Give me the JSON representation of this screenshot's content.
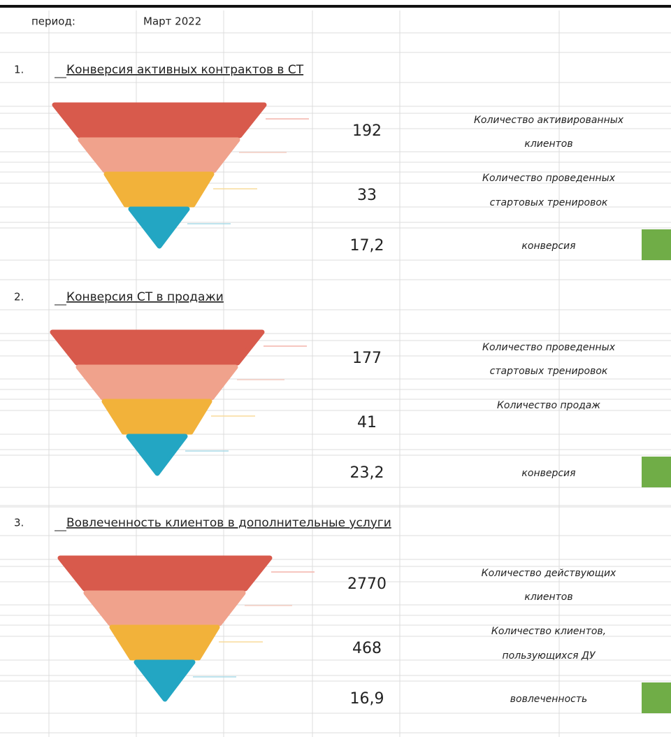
{
  "header": {
    "period_label": "период:",
    "period_value": "Март 2022"
  },
  "sections": [
    {
      "number": "1.",
      "title": "Конверсия активных контрактов в СТ",
      "rows": [
        {
          "value": "192",
          "label": [
            "Количество активированных",
            "клиентов"
          ]
        },
        {
          "value": "33",
          "label": [
            "Количество проведенных",
            "стартовых тренировок"
          ]
        },
        {
          "value": "17,2",
          "label": [
            "конверсия"
          ]
        }
      ]
    },
    {
      "number": "2.",
      "title": "Конверсия СТ в продажи",
      "rows": [
        {
          "value": "177",
          "label": [
            "Количество проведенных",
            "стартовых тренировок"
          ]
        },
        {
          "value": "41",
          "label": [
            "Количество продаж"
          ]
        },
        {
          "value": "23,2",
          "label": [
            "конверсия"
          ]
        }
      ]
    },
    {
      "number": "3.",
      "title": "Вовлеченность клиентов в дополнительные услуги",
      "rows": [
        {
          "value": "2770",
          "label": [
            "Количество действующих",
            "клиентов"
          ]
        },
        {
          "value": "468",
          "label": [
            "Количество клиентов,",
            "пользующихся ДУ"
          ]
        },
        {
          "value": "16,9",
          "label": [
            "вовлеченность"
          ]
        }
      ]
    }
  ]
}
